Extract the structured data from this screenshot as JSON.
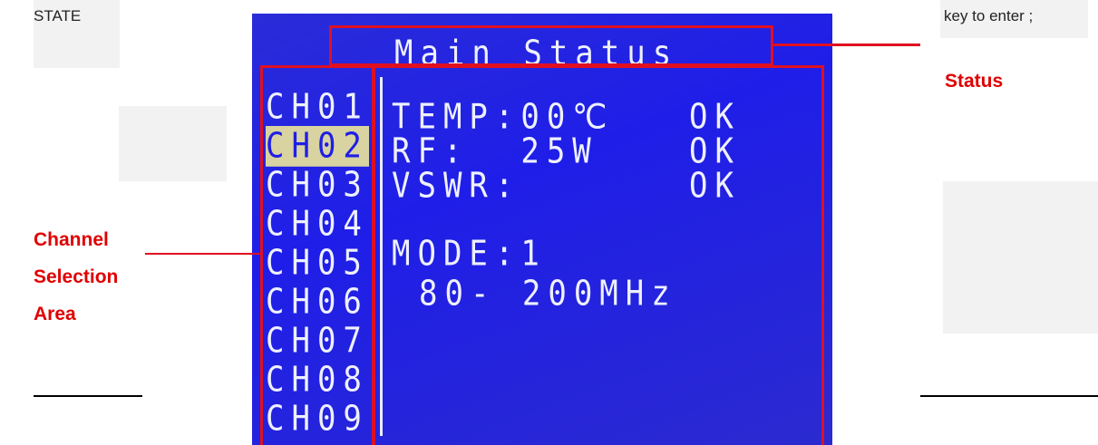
{
  "header": {
    "label": "STATE",
    "hint": "key to enter ;"
  },
  "lcd": {
    "title": "Main Status",
    "channels": [
      "CH01",
      "CH02",
      "CH03",
      "CH04",
      "CH05",
      "CH06",
      "CH07",
      "CH08",
      "CH09"
    ],
    "selected": 1,
    "status": {
      "rows": [
        {
          "label": "TEMP:00℃",
          "state": "OK"
        },
        {
          "label": "RF:  25W",
          "state": "OK"
        },
        {
          "label": "VSWR:",
          "state": "OK"
        }
      ],
      "mode": "MODE:1",
      "band": "80- 200MHz"
    }
  },
  "annotations": {
    "status": "Status",
    "channel_area": [
      "Channel",
      "Selection",
      "Area"
    ]
  }
}
